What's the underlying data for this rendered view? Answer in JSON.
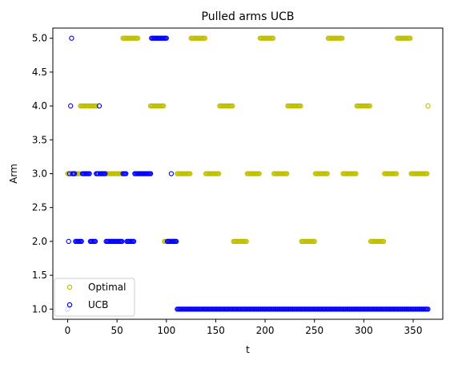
{
  "chart_data": {
    "type": "scatter",
    "title": "Pulled arms UCB",
    "xlabel": "t",
    "ylabel": "Arm",
    "xlim": [
      -15,
      380
    ],
    "ylim": [
      0.85,
      5.15
    ],
    "xticks": [
      0,
      50,
      100,
      150,
      200,
      250,
      300,
      350
    ],
    "xtick_labels": [
      "0",
      "50",
      "100",
      "150",
      "200",
      "250",
      "300",
      "350"
    ],
    "yticks": [
      1.0,
      1.5,
      2.0,
      2.5,
      3.0,
      3.5,
      4.0,
      4.5,
      5.0
    ],
    "ytick_labels": [
      "1.0",
      "1.5",
      "2.0",
      "2.5",
      "3.0",
      "3.5",
      "4.0",
      "4.5",
      "5.0"
    ],
    "legend_position": "lower-left",
    "series": [
      {
        "name": "Optimal",
        "color": "#bfbf00",
        "marker": "hollow-circle",
        "segments": [
          {
            "y": 3,
            "start": 0,
            "end": 12
          },
          {
            "y": 4,
            "start": 13,
            "end": 29
          },
          {
            "y": 3,
            "start": 30,
            "end": 55
          },
          {
            "y": 5,
            "start": 56,
            "end": 71
          },
          {
            "y": 3,
            "start": 72,
            "end": 83
          },
          {
            "y": 4,
            "start": 84,
            "end": 97
          },
          {
            "y": 2,
            "start": 98,
            "end": 110
          },
          {
            "y": 3,
            "start": 111,
            "end": 124
          },
          {
            "y": 5,
            "start": 125,
            "end": 139
          },
          {
            "y": 3,
            "start": 140,
            "end": 153
          },
          {
            "y": 4,
            "start": 154,
            "end": 167
          },
          {
            "y": 2,
            "start": 168,
            "end": 181
          },
          {
            "y": 3,
            "start": 182,
            "end": 194
          },
          {
            "y": 5,
            "start": 195,
            "end": 208
          },
          {
            "y": 3,
            "start": 209,
            "end": 222
          },
          {
            "y": 4,
            "start": 223,
            "end": 236
          },
          {
            "y": 2,
            "start": 237,
            "end": 250
          },
          {
            "y": 3,
            "start": 251,
            "end": 263
          },
          {
            "y": 5,
            "start": 264,
            "end": 278
          },
          {
            "y": 3,
            "start": 279,
            "end": 292
          },
          {
            "y": 4,
            "start": 293,
            "end": 306
          },
          {
            "y": 2,
            "start": 307,
            "end": 320
          },
          {
            "y": 3,
            "start": 321,
            "end": 333
          },
          {
            "y": 5,
            "start": 334,
            "end": 347
          },
          {
            "y": 3,
            "start": 348,
            "end": 364
          },
          {
            "y": 4,
            "start": 365,
            "end": 365
          }
        ]
      },
      {
        "name": "UCB",
        "color": "#0000ff",
        "marker": "hollow-circle",
        "segments": [
          {
            "y": 1,
            "start": 0,
            "end": 0
          },
          {
            "y": 2,
            "start": 1,
            "end": 1
          },
          {
            "y": 3,
            "start": 2,
            "end": 2
          },
          {
            "y": 4,
            "start": 3,
            "end": 3
          },
          {
            "y": 5,
            "start": 4,
            "end": 4
          },
          {
            "y": 3,
            "start": 5,
            "end": 7
          },
          {
            "y": 2,
            "start": 8,
            "end": 14
          },
          {
            "y": 3,
            "start": 15,
            "end": 22
          },
          {
            "y": 2,
            "start": 23,
            "end": 28
          },
          {
            "y": 3,
            "start": 29,
            "end": 31
          },
          {
            "y": 4,
            "start": 32,
            "end": 32
          },
          {
            "y": 3,
            "start": 33,
            "end": 38
          },
          {
            "y": 2,
            "start": 39,
            "end": 55
          },
          {
            "y": 3,
            "start": 56,
            "end": 59
          },
          {
            "y": 2,
            "start": 60,
            "end": 67
          },
          {
            "y": 3,
            "start": 68,
            "end": 84
          },
          {
            "y": 5,
            "start": 85,
            "end": 100
          },
          {
            "y": 2,
            "start": 101,
            "end": 104
          },
          {
            "y": 3,
            "start": 105,
            "end": 105
          },
          {
            "y": 2,
            "start": 106,
            "end": 110
          },
          {
            "y": 1,
            "start": 111,
            "end": 365
          }
        ]
      }
    ]
  }
}
